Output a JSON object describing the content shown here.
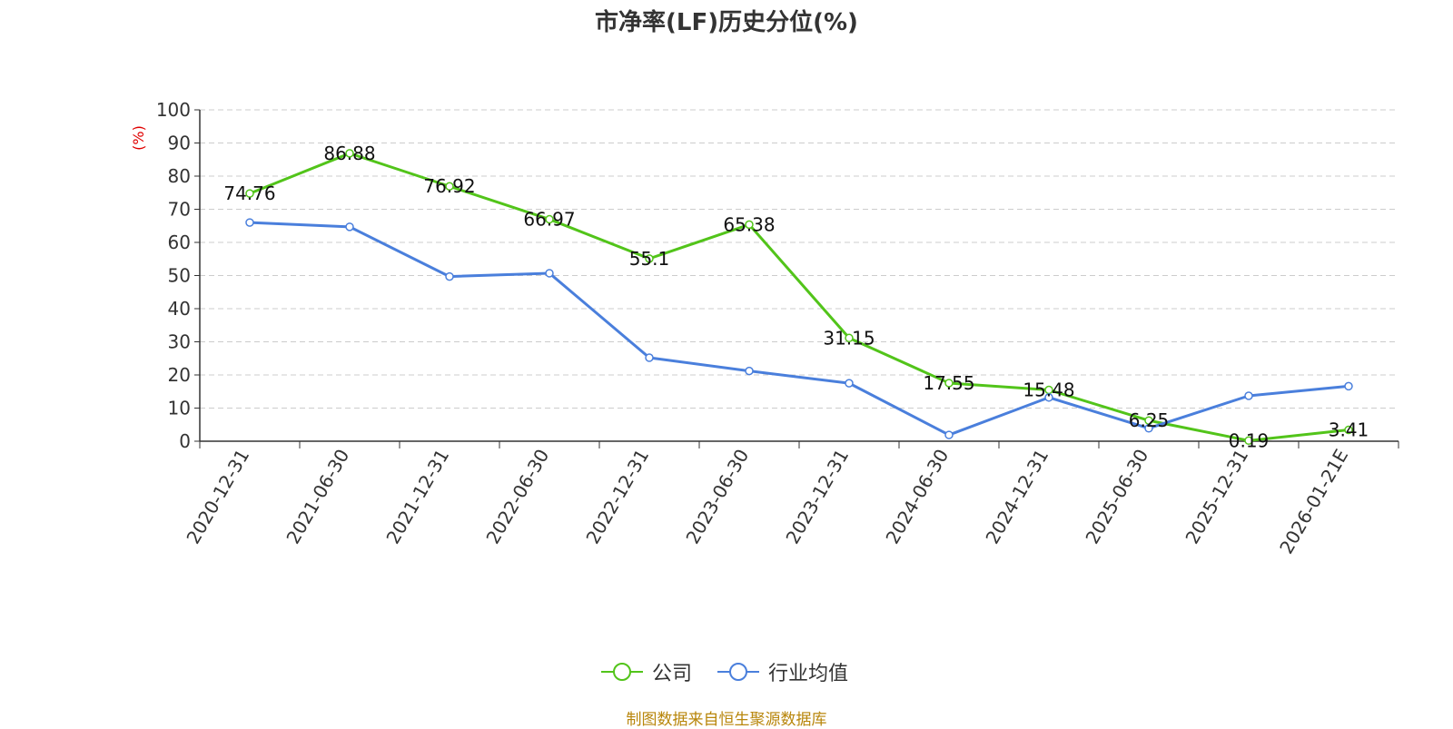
{
  "colors": {
    "company": "#52c41a",
    "industry": "#4a7fdc",
    "axis": "#333333",
    "grid": "#cccccc",
    "ylabel": "#e00000",
    "source": "#b8860b"
  },
  "chart_data": {
    "type": "line",
    "title": "市净率(LF)历史分位(%)",
    "xlabel": "",
    "ylabel": "(%)",
    "ylim": [
      0,
      100
    ],
    "yticks": [
      0,
      10,
      20,
      30,
      40,
      50,
      60,
      70,
      80,
      90,
      100
    ],
    "grid": true,
    "legend_position": "bottom-center",
    "categories": [
      "2020-12-31",
      "2021-06-30",
      "2021-12-31",
      "2022-06-30",
      "2022-12-31",
      "2023-06-30",
      "2023-12-31",
      "2024-06-30",
      "2024-12-31",
      "2025-06-30",
      "2025-12-31",
      "2026-01-21E"
    ],
    "series": [
      {
        "name": "公司",
        "color": "#52c41a",
        "values": [
          74.76,
          86.88,
          76.92,
          66.97,
          55.1,
          65.38,
          31.15,
          17.55,
          15.48,
          6.25,
          0.19,
          3.41
        ],
        "labels": [
          "74.76",
          "86.88",
          "76.92",
          "66.97",
          "55.1",
          "65.38",
          "31.15",
          "17.55",
          "15.48",
          "6.25",
          "0.19",
          "3.41"
        ]
      },
      {
        "name": "行业均值",
        "color": "#4a7fdc",
        "values": [
          66.0,
          64.7,
          49.7,
          50.7,
          25.2,
          21.2,
          17.5,
          1.9,
          13.2,
          3.9,
          13.7,
          16.6
        ]
      }
    ]
  },
  "source_note": "制图数据来自恒生聚源数据库"
}
